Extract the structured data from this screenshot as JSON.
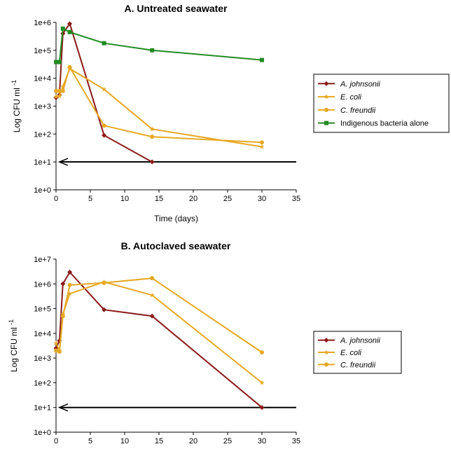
{
  "chart_data": [
    {
      "type": "line",
      "title": "A. Untreated seawater",
      "xlabel": "Time (days)",
      "ylabel": "Log CFU ml",
      "ylabel_superscript": "-1",
      "xlim": [
        0,
        35
      ],
      "ylim_log10": [
        0,
        6
      ],
      "yscale": "log",
      "xticks": [
        "0",
        "5",
        "10",
        "15",
        "20",
        "25",
        "30",
        "35"
      ],
      "yticks": [
        "1e+0",
        "1e+1",
        "1e+2",
        "1e+3",
        "1e+4",
        "1e+5",
        "1e+6"
      ],
      "grid": false,
      "legend_position": "right",
      "series": [
        {
          "name": "A. johnsonii",
          "italic": true,
          "color": "#8b1a1a",
          "marker": "diamond",
          "x": [
            0,
            0.5,
            1,
            2,
            7,
            14
          ],
          "y": [
            2000,
            2500,
            400000,
            900000,
            90,
            10
          ]
        },
        {
          "name": "E. coli",
          "italic": true,
          "color": "#e6a822",
          "marker": "star",
          "x": [
            0,
            0.5,
            1,
            2,
            7,
            14,
            30
          ],
          "y": [
            2200,
            2300,
            5000,
            22000,
            4000,
            150,
            35
          ]
        },
        {
          "name": "C. freundii",
          "italic": true,
          "color": "#e6a822",
          "marker": "circle",
          "x": [
            0,
            0.5,
            1,
            2,
            7,
            14,
            30
          ],
          "y": [
            3500,
            3500,
            3500,
            25000,
            200,
            80,
            50
          ]
        },
        {
          "name": "Indigenous bacteria alone",
          "italic": false,
          "color": "#228b22",
          "marker": "square",
          "x": [
            0,
            0.5,
            1,
            2,
            7,
            14,
            30
          ],
          "y": [
            38000,
            38000,
            600000,
            450000,
            180000,
            100000,
            45000
          ]
        }
      ],
      "reference_line": {
        "y": 10,
        "x_start": 0.5,
        "x_end": 35,
        "color": "#000000",
        "arrow": "left"
      }
    },
    {
      "type": "line",
      "title": "B. Autoclaved seawater",
      "xlabel": "",
      "ylabel": "Log CFU ml",
      "ylabel_superscript": "-1",
      "xlim": [
        0,
        35
      ],
      "ylim_log10": [
        0,
        7
      ],
      "yscale": "log",
      "xticks": [
        "0",
        "5",
        "10",
        "15",
        "20",
        "25",
        "30",
        "35"
      ],
      "yticks": [
        "1e+0",
        "1e+1",
        "1e+2",
        "1e+3",
        "1e+4",
        "1e+5",
        "1e+6",
        "1e+7"
      ],
      "grid": false,
      "legend_position": "right",
      "series": [
        {
          "name": "A. johnsonii",
          "italic": true,
          "color": "#8b1a1a",
          "marker": "diamond",
          "x": [
            0,
            0.5,
            1,
            2,
            7,
            14,
            30
          ],
          "y": [
            2500,
            5000,
            1000000,
            3000000,
            90000,
            50000,
            10
          ]
        },
        {
          "name": "E. coli",
          "italic": true,
          "color": "#e6a822",
          "marker": "star",
          "x": [
            0,
            0.5,
            1,
            2,
            7,
            14,
            30
          ],
          "y": [
            4000,
            2000,
            60000,
            400000,
            1200000,
            350000,
            100
          ]
        },
        {
          "name": "C. freundii",
          "italic": true,
          "color": "#e6a822",
          "marker": "circle",
          "x": [
            0,
            0.5,
            1,
            2,
            7,
            14,
            30
          ],
          "y": [
            2000,
            1800,
            50000,
            900000,
            1100000,
            1700000,
            1700
          ]
        }
      ],
      "reference_line": {
        "y": 10,
        "x_start": 0.5,
        "x_end": 35,
        "color": "#000000",
        "arrow": "left"
      }
    }
  ]
}
